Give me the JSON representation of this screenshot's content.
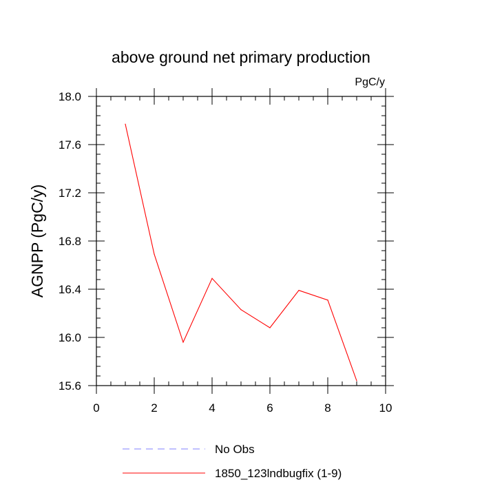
{
  "chart_data": {
    "type": "line",
    "title": "above ground net primary production",
    "units_label": "PgC/y",
    "ylabel": "AGNPP  (PgC/y)",
    "xlabel": "",
    "xlim": [
      0,
      10
    ],
    "ylim": [
      15.6,
      18.0
    ],
    "x_ticks": [
      0,
      2,
      4,
      6,
      8,
      10
    ],
    "x_tick_labels": [
      "0",
      "2",
      "4",
      "6",
      "8",
      "10"
    ],
    "y_ticks": [
      15.6,
      16.0,
      16.4,
      16.8,
      17.2,
      17.6,
      18.0
    ],
    "y_tick_labels": [
      "15.6",
      "16.0",
      "16.4",
      "16.8",
      "17.2",
      "17.6",
      "18.0"
    ],
    "grid": false,
    "legend_position": "bottom",
    "series": [
      {
        "name": "1850_123lndbugfix (1-9)",
        "color": "#ff0000",
        "dash": "solid",
        "x": [
          1,
          2,
          3,
          4,
          5,
          6,
          7,
          8,
          9
        ],
        "values": [
          17.77,
          16.69,
          15.96,
          16.49,
          16.23,
          16.08,
          16.39,
          16.31,
          15.64
        ]
      }
    ],
    "legend": [
      {
        "label": "No Obs",
        "color": "#8080ff",
        "dash": "dashed"
      },
      {
        "label": "1850_123lndbugfix (1-9)",
        "color": "#ff0000",
        "dash": "solid"
      }
    ]
  }
}
